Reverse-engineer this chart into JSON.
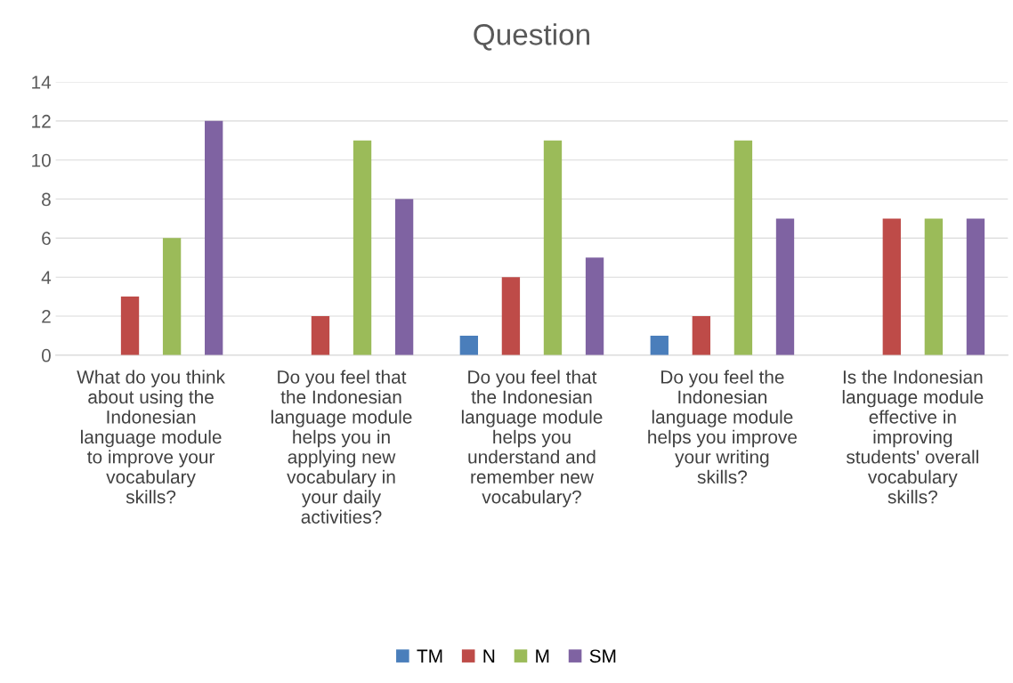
{
  "chart_data": {
    "type": "bar",
    "title": "Question",
    "categories": [
      "What do you think about using the Indonesian language module to improve your vocabulary skills?",
      "Do you feel that the Indonesian language module helps you in applying new vocabulary in your daily activities?",
      "Do you feel that the Indonesian language module helps you understand and remember new vocabulary?",
      "Do you feel the Indonesian language module helps you improve your writing skills?",
      "Is the Indonesian language module effective in improving students' overall vocabulary skills?"
    ],
    "series": [
      {
        "name": "TM",
        "color": "#4a7ebb",
        "values": [
          0,
          0,
          1,
          1,
          0
        ]
      },
      {
        "name": "N",
        "color": "#be4b48",
        "values": [
          3,
          2,
          4,
          2,
          7
        ]
      },
      {
        "name": "M",
        "color": "#9bbb59",
        "values": [
          6,
          11,
          11,
          11,
          7
        ]
      },
      {
        "name": "SM",
        "color": "#7f63a2",
        "values": [
          12,
          8,
          5,
          7,
          7
        ]
      }
    ],
    "ylim": [
      0,
      14
    ],
    "yticks": [
      0,
      2,
      4,
      6,
      8,
      10,
      12,
      14
    ],
    "grid": "y",
    "legend": "bottom"
  }
}
